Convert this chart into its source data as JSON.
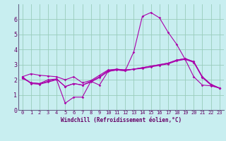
{
  "bg_color": "#c8eef0",
  "line_color": "#aa00aa",
  "grid_color": "#99ccbb",
  "axis_color": "#660066",
  "spine_color": "#666688",
  "xlabel": "Windchill (Refroidissement éolien,°C)",
  "xlim": [
    -0.5,
    23.5
  ],
  "ylim": [
    0,
    7
  ],
  "yticks": [
    0,
    1,
    2,
    3,
    4,
    5,
    6
  ],
  "xticks": [
    0,
    1,
    2,
    3,
    4,
    5,
    6,
    7,
    8,
    9,
    10,
    11,
    12,
    13,
    14,
    15,
    16,
    17,
    18,
    19,
    20,
    21,
    22,
    23
  ],
  "series": [
    {
      "x": [
        0,
        1,
        2,
        3,
        4,
        5,
        6,
        7,
        8,
        9,
        10,
        11,
        12,
        13,
        14,
        15,
        16,
        17,
        18,
        19,
        20,
        21,
        22,
        23
      ],
      "y": [
        2.15,
        1.8,
        1.75,
        1.9,
        2.05,
        1.55,
        1.75,
        1.65,
        1.85,
        2.15,
        2.55,
        2.65,
        2.6,
        2.7,
        2.75,
        2.85,
        2.95,
        3.05,
        3.25,
        3.35,
        3.15,
        2.15,
        1.65,
        1.45
      ]
    },
    {
      "x": [
        0,
        1,
        2,
        3,
        4,
        5,
        6,
        7,
        8,
        9,
        10,
        11,
        12,
        13,
        14,
        15,
        16,
        17,
        18,
        19,
        20,
        21,
        22,
        23
      ],
      "y": [
        2.2,
        1.75,
        1.7,
        1.85,
        2.0,
        0.45,
        0.85,
        0.85,
        1.9,
        1.65,
        2.55,
        2.65,
        2.6,
        3.85,
        6.2,
        6.45,
        6.1,
        5.15,
        4.35,
        3.35,
        2.2,
        1.65,
        1.6,
        1.45
      ]
    },
    {
      "x": [
        0,
        1,
        2,
        3,
        4,
        5,
        6,
        7,
        8,
        9,
        10,
        11,
        12,
        13,
        14,
        15,
        16,
        17,
        18,
        19,
        20,
        21,
        22,
        23
      ],
      "y": [
        2.1,
        1.8,
        1.75,
        2.0,
        2.05,
        1.55,
        1.75,
        1.65,
        1.9,
        2.2,
        2.6,
        2.7,
        2.65,
        2.7,
        2.8,
        2.9,
        3.0,
        3.1,
        3.3,
        3.4,
        3.2,
        2.2,
        1.7,
        1.45
      ]
    },
    {
      "x": [
        0,
        1,
        2,
        3,
        4,
        5,
        6,
        7,
        8,
        9,
        10,
        11,
        12,
        13,
        14,
        15,
        16,
        17,
        18,
        19,
        20,
        21,
        22,
        23
      ],
      "y": [
        2.2,
        2.4,
        2.3,
        2.25,
        2.2,
        2.0,
        2.2,
        1.8,
        1.95,
        2.3,
        2.65,
        2.7,
        2.65,
        2.7,
        2.8,
        2.9,
        3.0,
        3.1,
        3.3,
        3.4,
        3.2,
        2.2,
        1.7,
        1.45
      ]
    }
  ]
}
